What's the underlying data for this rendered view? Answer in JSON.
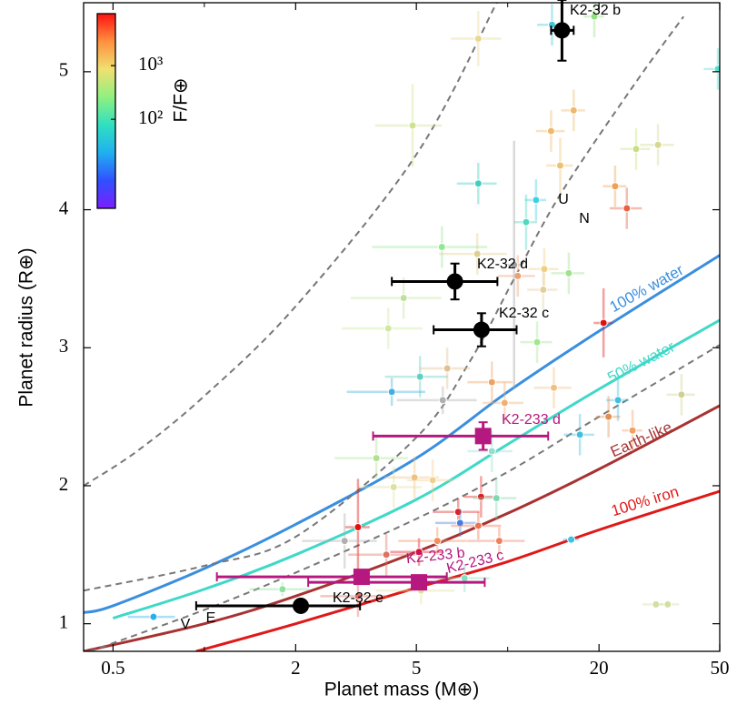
{
  "chart_data": {
    "type": "scatter",
    "xlabel": "Planet mass (M⊕)",
    "ylabel": "Planet radius (R⊕)",
    "xlog": true,
    "xlim": [
      0.4,
      50
    ],
    "ylim": [
      0.8,
      5.5
    ],
    "xticks": [
      0.5,
      2,
      5,
      20,
      50
    ],
    "xminor": [
      1,
      10
    ],
    "yticks": [
      1,
      2,
      3,
      4,
      5
    ],
    "curves": [
      {
        "name": "100% water",
        "color": "#3a8ee0",
        "dashed": false,
        "x": [
          0.4,
          0.5,
          1,
          2,
          5,
          10,
          20,
          50
        ],
        "y": [
          1.08,
          1.13,
          1.4,
          1.72,
          2.2,
          2.68,
          3.12,
          3.67
        ]
      },
      {
        "name": "50% water",
        "color": "#40d8c8",
        "dashed": false,
        "x": [
          0.5,
          1,
          2,
          5,
          10,
          20,
          50
        ],
        "y": [
          1.04,
          1.25,
          1.5,
          1.9,
          2.3,
          2.7,
          3.2
        ]
      },
      {
        "name": "Earth-like",
        "color": "#a83232",
        "dashed": false,
        "x": [
          0.4,
          1,
          2,
          5,
          10,
          20,
          50
        ],
        "y": [
          0.8,
          1.0,
          1.2,
          1.52,
          1.8,
          2.12,
          2.58
        ]
      },
      {
        "name": "100% iron",
        "color": "#e01818",
        "dashed": false,
        "x": [
          0.94,
          2,
          5,
          10,
          20,
          50
        ],
        "y": [
          0.8,
          1.0,
          1.26,
          1.45,
          1.68,
          1.96
        ]
      },
      {
        "color": "#777777",
        "dashed": true,
        "x": [
          0.4,
          0.6,
          1,
          2,
          5,
          9.2
        ],
        "y": [
          2.0,
          2.25,
          2.65,
          3.3,
          4.4,
          5.5
        ]
      },
      {
        "color": "#777777",
        "dashed": true,
        "x": [
          0.4,
          1,
          2,
          5,
          7.5,
          10.5,
          15,
          26,
          38
        ],
        "y": [
          1.24,
          1.42,
          1.63,
          2.35,
          2.9,
          3.5,
          4.12,
          4.9,
          5.4
        ]
      },
      {
        "color": "#777777",
        "dashed": true,
        "x": [
          0.42,
          1,
          2,
          5,
          10,
          20,
          50
        ],
        "y": [
          0.8,
          1.1,
          1.37,
          1.76,
          2.1,
          2.5,
          3.02
        ]
      }
    ],
    "background": {
      "x": [
        0.68,
        14.0,
        19.3,
        49.3,
        8.0,
        4.86,
        16.5,
        13.9,
        14.9,
        26.5,
        31.3,
        22.6,
        24.7,
        8.0,
        12.4,
        11.5,
        6.07,
        7.94,
        10.8,
        13.2,
        15.9,
        4.54,
        4.04,
        13.1,
        12.5,
        20.7,
        5.14,
        4.15,
        6.11,
        6.32,
        8.87,
        9.77,
        14.2,
        23.1,
        21.5,
        25.8,
        17.3,
        37.4,
        8.87,
        3.69,
        4.93,
        5.66,
        4.21,
        8.17,
        9.18,
        6.87,
        3.21,
        2.9,
        3.98,
        5.1,
        6.97,
        8.0,
        9.38,
        16.2,
        5.18,
        7.21,
        1.81,
        30.8,
        33.7,
        3.21,
        5.86,
        10.5
      ],
      "y": [
        1.05,
        5.34,
        5.4,
        5.02,
        5.24,
        4.61,
        4.72,
        4.57,
        4.32,
        4.44,
        4.47,
        4.17,
        4.01,
        4.19,
        4.07,
        3.91,
        3.73,
        3.68,
        3.52,
        3.57,
        3.54,
        3.36,
        3.14,
        3.42,
        3.04,
        3.18,
        2.79,
        2.68,
        2.62,
        2.85,
        2.75,
        2.6,
        2.71,
        2.62,
        2.5,
        2.4,
        2.37,
        2.66,
        2.25,
        2.2,
        2.06,
        2.04,
        1.99,
        1.92,
        1.91,
        1.81,
        1.7,
        1.6,
        1.5,
        1.52,
        1.73,
        1.71,
        1.6,
        1.61,
        1.24,
        1.33,
        1.25,
        1.14,
        1.14,
        1.2,
        1.6,
        3.6
      ],
      "colors": [
        "#2ab0e8",
        "#40c8d8",
        "#90e080",
        "#50e0d0",
        "#e8d890",
        "#cfe28f",
        "#f0b868",
        "#f0b868",
        "#f0c070",
        "#c8e080",
        "#d8d890",
        "#f0a050",
        "#e86040",
        "#40d0c0",
        "#40d0e0",
        "#50d8c0",
        "#90e890",
        "#e0d090",
        "#f0a070",
        "#f0d080",
        "#a0e090",
        "#c0e0a0",
        "#d0e8a0",
        "#e0d0a0",
        "#a0e890",
        "#e01010",
        "#60d0c0",
        "#40b0e0",
        "#b0b0b0",
        "#e0c090",
        "#f0a060",
        "#f0b070",
        "#f0c080",
        "#40c0e0",
        "#e09050",
        "#f0a060",
        "#40c0e0",
        "#d0d090",
        "#90e0d0",
        "#b0e090",
        "#f0c080",
        "#f0d090",
        "#e0e0a0",
        "#e02020",
        "#80d8b0",
        "#e02020",
        "#e01010",
        "#b0b0b0",
        "#e07060",
        "#e01030",
        "#4080e0",
        "#f07050",
        "#f08060",
        "#40c0e0",
        "#e0e0a0",
        "#80e0c0",
        "#90e0a0",
        "#d0e0a0",
        "#d0e0a0",
        "#e07060",
        "#f09060",
        "#a0a0a0"
      ],
      "xerr": [
        0.12,
        1.5,
        1.5,
        5,
        1.5,
        1.2,
        1.5,
        1.5,
        1.5,
        3,
        4,
        2,
        3,
        1.2,
        1,
        1,
        2.5,
        2,
        1.5,
        1.5,
        2,
        1.5,
        1.2,
        1.5,
        1.5,
        1.5,
        1.2,
        1.2,
        1.8,
        1.2,
        1.5,
        1.5,
        2,
        2,
        2,
        2,
        2,
        4,
        1.5,
        1,
        1,
        1,
        1,
        1,
        1.5,
        1.2,
        0.3,
        0.8,
        1,
        1,
        1.2,
        1.5,
        2,
        1,
        1.5,
        1.5,
        0.4,
        3,
        3,
        0.8,
        1.5,
        0.5
      ],
      "yerr": [
        0.03,
        0.15,
        0.15,
        0.15,
        0.2,
        0.3,
        0.15,
        0.15,
        0.2,
        0.15,
        0.15,
        0.15,
        0.15,
        0.15,
        0.15,
        0.2,
        0.15,
        0.15,
        0.15,
        0.15,
        0.15,
        0.15,
        0.15,
        0.15,
        0.15,
        0.25,
        0.15,
        0.1,
        0.1,
        0.15,
        0.15,
        0.15,
        0.15,
        0.15,
        0.15,
        0.15,
        0.15,
        0.15,
        0.15,
        0.15,
        0.15,
        0.15,
        0.15,
        0.15,
        0.15,
        0.1,
        0.35,
        0.2,
        0.15,
        0.1,
        0.1,
        0.1,
        0.1,
        0.03,
        0.1,
        0.1,
        0.05,
        0.03,
        0.03,
        0.15,
        0.1,
        0.9
      ]
    },
    "planets": [
      {
        "color": "#000000",
        "marker": "circle",
        "labels": [
          "K2-32 b",
          "K2-32 d",
          "K2-32 c",
          "K2-32 e"
        ],
        "x": [
          15.1,
          6.7,
          8.2,
          2.08
        ],
        "y": [
          5.3,
          3.48,
          3.13,
          1.13
        ],
        "xerr_minus": [
          1.2,
          2.55,
          2.5,
          1.14
        ],
        "xerr_plus": [
          1.4,
          2.55,
          2.5,
          1.18
        ],
        "yerr": [
          0.22,
          0.13,
          0.12,
          0.02
        ]
      },
      {
        "color": "#b5187f",
        "marker": "square",
        "labels": [
          "K2-233 d",
          "K2-233 b",
          "K2-233 c"
        ],
        "x": [
          8.3,
          3.3,
          5.1
        ],
        "y": [
          2.36,
          1.34,
          1.3
        ],
        "xerr_minus": [
          4.7,
          2.2,
          2.9
        ],
        "xerr_plus": [
          5.3,
          3.0,
          3.3
        ],
        "yerr": [
          0.1,
          0.04,
          0.04
        ]
      }
    ],
    "annotations": [
      "U",
      "N",
      "V",
      "E"
    ],
    "colorbar": {
      "label": "F/F⊕",
      "log": true,
      "lim": [
        2.2,
        9300
      ],
      "ticks": [
        {
          "value": 1000,
          "label": "10³"
        },
        {
          "value": 100,
          "label": "10²"
        }
      ],
      "colors": [
        "#7a1fff",
        "#3050ff",
        "#20b0f0",
        "#30e0c0",
        "#90f080",
        "#f0e070",
        "#ff9040",
        "#ff1010"
      ]
    }
  }
}
